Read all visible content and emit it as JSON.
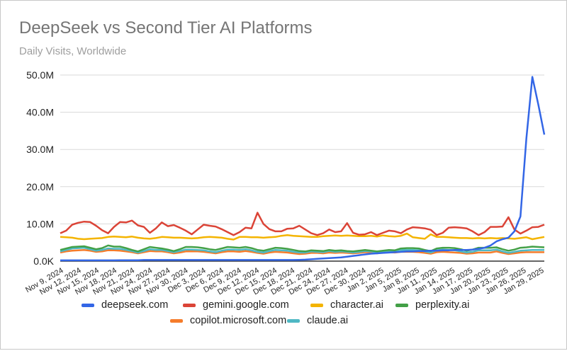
{
  "chart_data": {
    "type": "line",
    "title": "DeepSeek vs Second Tier AI Platforms",
    "subtitle": "Daily Visits, Worldwide",
    "xlabel": "",
    "ylabel": "",
    "ylim": [
      0,
      50000000
    ],
    "yticks": [
      "0.0K",
      "10.0M",
      "20.0M",
      "30.0M",
      "40.0M",
      "50.0M"
    ],
    "xticks": [
      "Nov 9, 2024",
      "Nov 12, 2024",
      "Nov 15, 2024",
      "Nov 18, 2024",
      "Nov 21, 2024",
      "Nov 24, 2024",
      "Nov 27, 2024",
      "Nov 30, 2024",
      "Dec 3, 2024",
      "Dec 6, 2024",
      "Dec 9, 2024",
      "Dec 12, 2024",
      "Dec 15, 2024",
      "Dec 18, 2024",
      "Dec 21, 2024",
      "Dec 24, 2024",
      "Dec 27, 2024",
      "Dec 30, 2024",
      "Jan 2, 2025",
      "Jan 5, 2025",
      "Jan 8, 2025",
      "Jan 11, 2025",
      "Jan 14, 2025",
      "Jan 17, 2025",
      "Jan 20, 2025",
      "Jan 23, 2025",
      "Jan 26, 2025",
      "Jan 29, 2025"
    ],
    "x_start": "Nov 9, 2024",
    "x_end": "Jan 29, 2025",
    "units": "millions of visits",
    "grid": true,
    "legend_position": "bottom",
    "series": [
      {
        "name": "deepseek.com",
        "color": "#3366e6",
        "values": [
          0.2,
          0.2,
          0.2,
          0.2,
          0.2,
          0.2,
          0.2,
          0.2,
          0.2,
          0.2,
          0.25,
          0.25,
          0.25,
          0.25,
          0.3,
          0.3,
          0.3,
          0.3,
          0.3,
          0.3,
          0.3,
          0.3,
          0.3,
          0.3,
          0.3,
          0.3,
          0.3,
          0.3,
          0.3,
          0.3,
          0.3,
          0.3,
          0.3,
          0.3,
          0.3,
          0.3,
          0.3,
          0.3,
          0.3,
          0.3,
          0.35,
          0.4,
          0.5,
          0.6,
          0.7,
          0.8,
          0.9,
          1.0,
          1.2,
          1.4,
          1.6,
          1.8,
          2.0,
          2.1,
          2.2,
          2.3,
          2.4,
          2.5,
          2.6,
          2.6,
          2.7,
          2.7,
          2.8,
          2.8,
          2.9,
          2.9,
          3.0,
          3.0,
          3.0,
          3.1,
          3.3,
          3.6,
          4.2,
          5.3,
          5.9,
          6.3,
          8.0,
          12.0,
          33.0,
          49.5,
          42.0,
          34.0
        ]
      },
      {
        "name": "gemini.google.com",
        "color": "#db4437",
        "values": [
          7.5,
          8.2,
          9.8,
          10.3,
          10.6,
          10.5,
          9.5,
          8.3,
          7.5,
          9.2,
          10.5,
          10.4,
          10.9,
          9.6,
          9.2,
          7.6,
          8.8,
          10.4,
          9.4,
          9.7,
          9.0,
          8.2,
          7.2,
          8.5,
          9.8,
          9.5,
          9.3,
          8.6,
          7.8,
          7.0,
          7.8,
          9.0,
          8.8,
          13.0,
          10.0,
          8.6,
          8.0,
          8.0,
          8.7,
          8.8,
          9.5,
          8.5,
          7.5,
          7.0,
          7.5,
          8.5,
          7.8,
          8.0,
          10.2,
          7.6,
          7.1,
          7.2,
          7.8,
          7.0,
          7.6,
          8.2,
          8.0,
          7.5,
          8.5,
          9.1,
          9.0,
          8.8,
          8.4,
          7.0,
          7.6,
          9.0,
          9.1,
          9.0,
          8.8,
          8.0,
          7.0,
          7.8,
          9.2,
          9.2,
          9.3,
          11.8,
          8.5,
          7.4,
          8.2,
          9.1,
          9.2,
          9.8
        ]
      },
      {
        "name": "character.ai",
        "color": "#f4b400",
        "values": [
          6.5,
          6.4,
          6.3,
          6.0,
          5.9,
          6.0,
          6.1,
          6.2,
          6.5,
          6.6,
          6.5,
          6.4,
          6.6,
          6.3,
          6.1,
          6.0,
          6.2,
          6.5,
          6.4,
          6.3,
          6.3,
          6.2,
          6.1,
          6.2,
          6.4,
          6.5,
          6.4,
          6.3,
          6.0,
          5.8,
          6.5,
          6.5,
          6.4,
          6.4,
          6.3,
          6.4,
          6.5,
          6.8,
          7.0,
          6.8,
          6.7,
          6.6,
          6.5,
          6.5,
          6.7,
          6.8,
          6.9,
          6.8,
          6.9,
          6.8,
          6.7,
          6.7,
          6.8,
          6.6,
          6.9,
          6.7,
          6.6,
          6.8,
          7.4,
          6.4,
          6.2,
          6.0,
          7.2,
          6.5,
          6.5,
          6.4,
          6.3,
          6.2,
          6.2,
          6.1,
          6.2,
          6.1,
          6.2,
          6.1,
          6.2,
          6.1,
          6.0,
          6.2,
          6.4,
          5.9,
          6.2,
          6.5
        ]
      },
      {
        "name": "perplexity.ai",
        "color": "#43a047",
        "values": [
          3.0,
          3.4,
          3.8,
          3.9,
          4.0,
          3.6,
          3.2,
          3.5,
          4.2,
          3.9,
          3.9,
          3.5,
          3.0,
          2.6,
          3.2,
          3.8,
          3.6,
          3.4,
          3.1,
          2.7,
          3.2,
          3.8,
          3.8,
          3.7,
          3.5,
          3.2,
          3.0,
          3.4,
          3.8,
          3.7,
          3.6,
          3.8,
          3.5,
          3.0,
          2.8,
          3.2,
          3.6,
          3.5,
          3.3,
          3.0,
          2.7,
          2.6,
          2.9,
          2.8,
          2.7,
          3.0,
          2.8,
          2.9,
          2.7,
          2.6,
          2.8,
          3.0,
          2.8,
          2.6,
          2.8,
          3.0,
          2.9,
          3.4,
          3.5,
          3.5,
          3.4,
          3.0,
          2.7,
          3.4,
          3.6,
          3.6,
          3.5,
          3.2,
          2.8,
          3.1,
          3.6,
          3.6,
          3.6,
          3.7,
          3.2,
          2.8,
          3.1,
          3.6,
          3.7,
          3.9,
          3.8,
          3.7
        ]
      },
      {
        "name": "copilot.microsoft.com",
        "color": "#f57c2b",
        "values": [
          2.3,
          2.6,
          2.8,
          2.9,
          3.0,
          2.8,
          2.5,
          2.6,
          2.9,
          2.9,
          2.8,
          2.6,
          2.4,
          2.1,
          2.4,
          2.7,
          2.6,
          2.6,
          2.4,
          2.1,
          2.3,
          2.6,
          2.6,
          2.6,
          2.5,
          2.3,
          2.1,
          2.4,
          2.6,
          2.6,
          2.5,
          2.7,
          2.5,
          2.2,
          2.0,
          2.3,
          2.5,
          2.4,
          2.3,
          2.1,
          1.9,
          2.0,
          2.2,
          2.2,
          2.1,
          2.3,
          2.2,
          2.3,
          2.2,
          2.1,
          2.2,
          2.4,
          2.3,
          2.1,
          2.3,
          2.4,
          2.3,
          2.5,
          2.5,
          2.5,
          2.4,
          2.2,
          2.0,
          2.4,
          2.5,
          2.4,
          2.3,
          2.2,
          2.0,
          2.1,
          2.3,
          2.3,
          2.3,
          2.6,
          2.2,
          1.9,
          2.1,
          2.3,
          2.4,
          2.4,
          2.4,
          2.4
        ]
      },
      {
        "name": "claude.ai",
        "color": "#4fb8c4",
        "values": [
          2.6,
          3.0,
          3.4,
          3.5,
          3.6,
          3.2,
          2.8,
          3.0,
          3.4,
          3.3,
          3.3,
          3.0,
          2.7,
          2.3,
          2.7,
          3.2,
          3.0,
          3.0,
          2.7,
          2.4,
          2.7,
          3.1,
          3.1,
          3.0,
          2.9,
          2.6,
          2.4,
          2.8,
          3.1,
          3.1,
          3.0,
          3.2,
          2.9,
          2.5,
          2.3,
          2.7,
          3.0,
          2.9,
          2.8,
          2.5,
          2.3,
          2.3,
          2.6,
          2.5,
          2.4,
          2.7,
          2.5,
          2.6,
          2.5,
          2.3,
          2.5,
          2.7,
          2.6,
          2.4,
          2.6,
          2.8,
          2.7,
          3.0,
          3.0,
          3.0,
          2.9,
          2.6,
          2.3,
          2.9,
          3.1,
          3.0,
          2.9,
          2.6,
          2.3,
          2.5,
          2.9,
          2.9,
          2.9,
          3.1,
          2.6,
          2.2,
          2.5,
          2.8,
          2.9,
          3.0,
          3.0,
          3.0
        ]
      }
    ]
  }
}
